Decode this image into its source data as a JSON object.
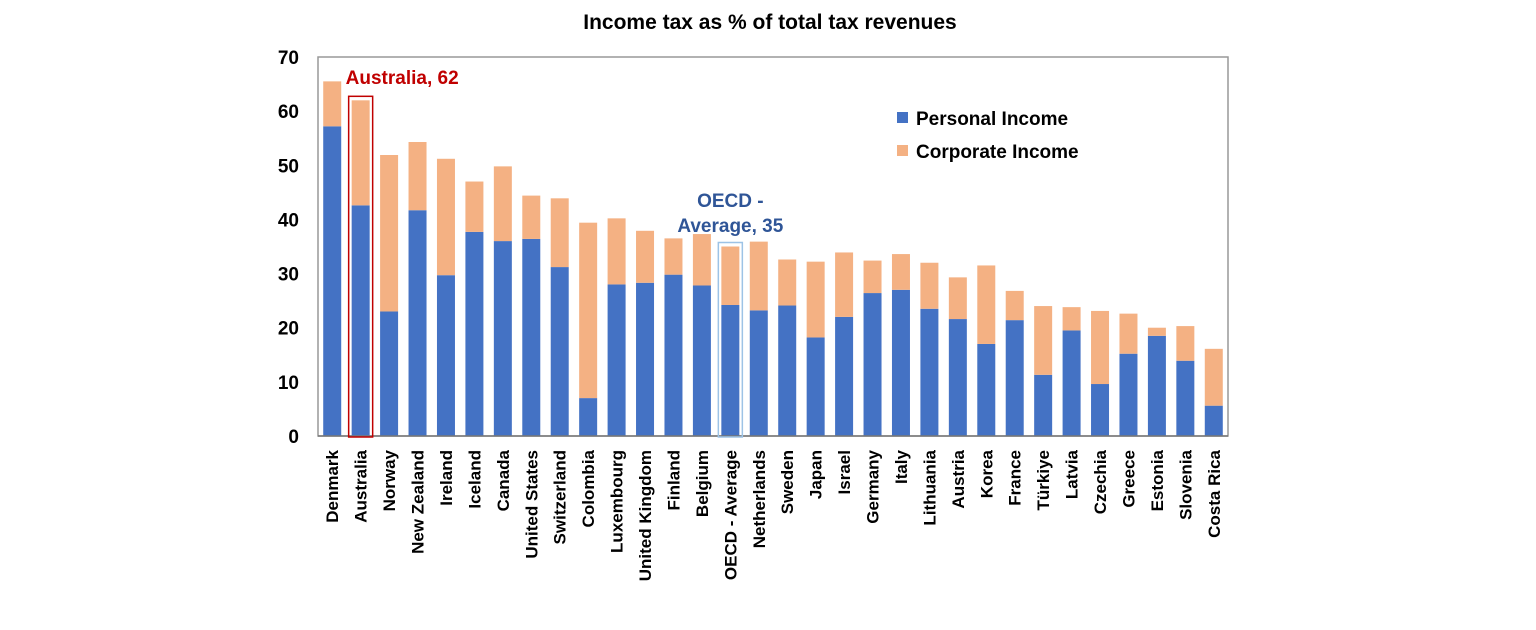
{
  "chart_data": {
    "type": "bar",
    "stacked": true,
    "title": "Income tax as % of total tax revenues",
    "xlabel": "",
    "ylabel": "",
    "ylim": [
      0,
      70
    ],
    "yticks": [
      "0",
      "10",
      "20",
      "30",
      "40",
      "50",
      "60",
      "70"
    ],
    "grid": false,
    "legend_position": "top-right",
    "categories": [
      "Denmark",
      "Australia",
      "Norway",
      "New Zealand",
      "Ireland",
      "Iceland",
      "Canada",
      "United States",
      "Switzerland",
      "Colombia",
      "Luxembourg",
      "United Kingdom",
      "Finland",
      "Belgium",
      "OECD - Average",
      "Netherlands",
      "Sweden",
      "Japan",
      "Israel",
      "Germany",
      "Italy",
      "Lithuania",
      "Austria",
      "Korea",
      "France",
      "Türkiye",
      "Latvia",
      "Czechia",
      "Greece",
      "Estonia",
      "Slovenia",
      "Costa Rica"
    ],
    "series": [
      {
        "name": "Personal Income",
        "color": "#4472C4",
        "values": [
          57.2,
          42.6,
          23.0,
          41.7,
          29.7,
          37.7,
          36.0,
          36.4,
          31.2,
          7.0,
          28.0,
          28.3,
          29.8,
          27.8,
          24.2,
          23.2,
          24.1,
          18.2,
          22.0,
          26.4,
          27.0,
          23.5,
          21.6,
          17.0,
          21.4,
          11.3,
          19.5,
          9.6,
          15.2,
          18.5,
          13.9,
          5.6
        ]
      },
      {
        "name": "Corporate Income",
        "color": "#F4B183",
        "values": [
          8.3,
          19.4,
          28.9,
          12.6,
          21.5,
          9.3,
          13.8,
          8.0,
          12.7,
          32.4,
          12.2,
          9.6,
          6.7,
          9.5,
          10.8,
          12.7,
          8.5,
          14.0,
          11.9,
          6.0,
          6.6,
          8.5,
          7.7,
          14.5,
          5.4,
          12.7,
          4.3,
          13.5,
          7.4,
          1.5,
          6.4,
          10.5
        ]
      }
    ],
    "annotations": [
      {
        "category": "Australia",
        "text": "Australia, 62",
        "color": "#C00000"
      },
      {
        "category": "OECD - Average",
        "text_lines": [
          "OECD -",
          "Average, 35"
        ],
        "color": "#2F5597"
      }
    ]
  }
}
